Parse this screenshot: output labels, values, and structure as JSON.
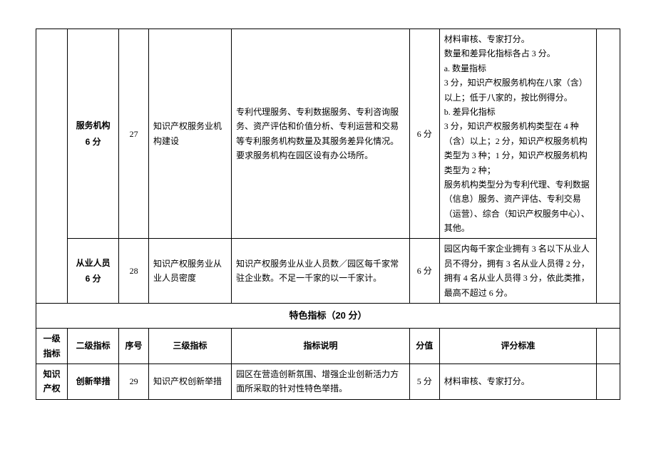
{
  "rows": [
    {
      "lvl2_name": "服务机构",
      "lvl2_score": "6 分",
      "seq": "27",
      "lvl3": "知识产权服务业机构建设",
      "desc": "专利代理服务、专利数据服务、专利咨询服务、资产评估和价值分析、专利运营和交易等专利服务机构数量及其服务差异化情况。要求服务机构在园区设有办公场所。",
      "score": "6 分",
      "criteria": "材料审核、专家打分。\n数量和差异化指标各占 3 分。\na. 数量指标\n3 分，知识产权服务机构在八家（含）以上；低于八家的，按比例得分。\nb. 差异化指标\n3 分，知识产权服务机构类型在 4 种（含）以上；2 分，知识产权服务机构类型为 3 种；1 分，知识产权服务机构类型为 2 种；\n服务机构类型分为专利代理、专利数据（信息）服务、资产评估、专利交易（运营）、综合（知识产权服务中心）、其他。"
    },
    {
      "lvl2_name": "从业人员",
      "lvl2_score": "6 分",
      "seq": "28",
      "lvl3": "知识产权服务业从业人员密度",
      "desc": "知识产权服务业从业人员数／园区每千家常驻企业数。不足一千家的以一千家计。",
      "score": "6 分",
      "criteria": "园区内每千家企业拥有 3 名以下从业人员不得分，拥有 3 名从业人员得 2 分，拥有 4 名从业人员得 3 分，依此类推，最高不超过 6 分。"
    }
  ],
  "section2": {
    "title": "特色指标（20 分）",
    "headers": {
      "lvl1": "一级指标",
      "lvl2": "二级指标",
      "seq": "序号",
      "lvl3": "三级指标",
      "desc": "指标说明",
      "score": "分值",
      "criteria": "评分标准"
    },
    "row": {
      "lvl1": "知识产权",
      "lvl2": "创新举措",
      "seq": "29",
      "lvl3": "知识产权创新举措",
      "desc": "园区在营造创新氛围、增强企业创新活力方面所采取的针对性特色举措。",
      "score": "5 分",
      "criteria": "材料审核、专家打分。"
    }
  }
}
